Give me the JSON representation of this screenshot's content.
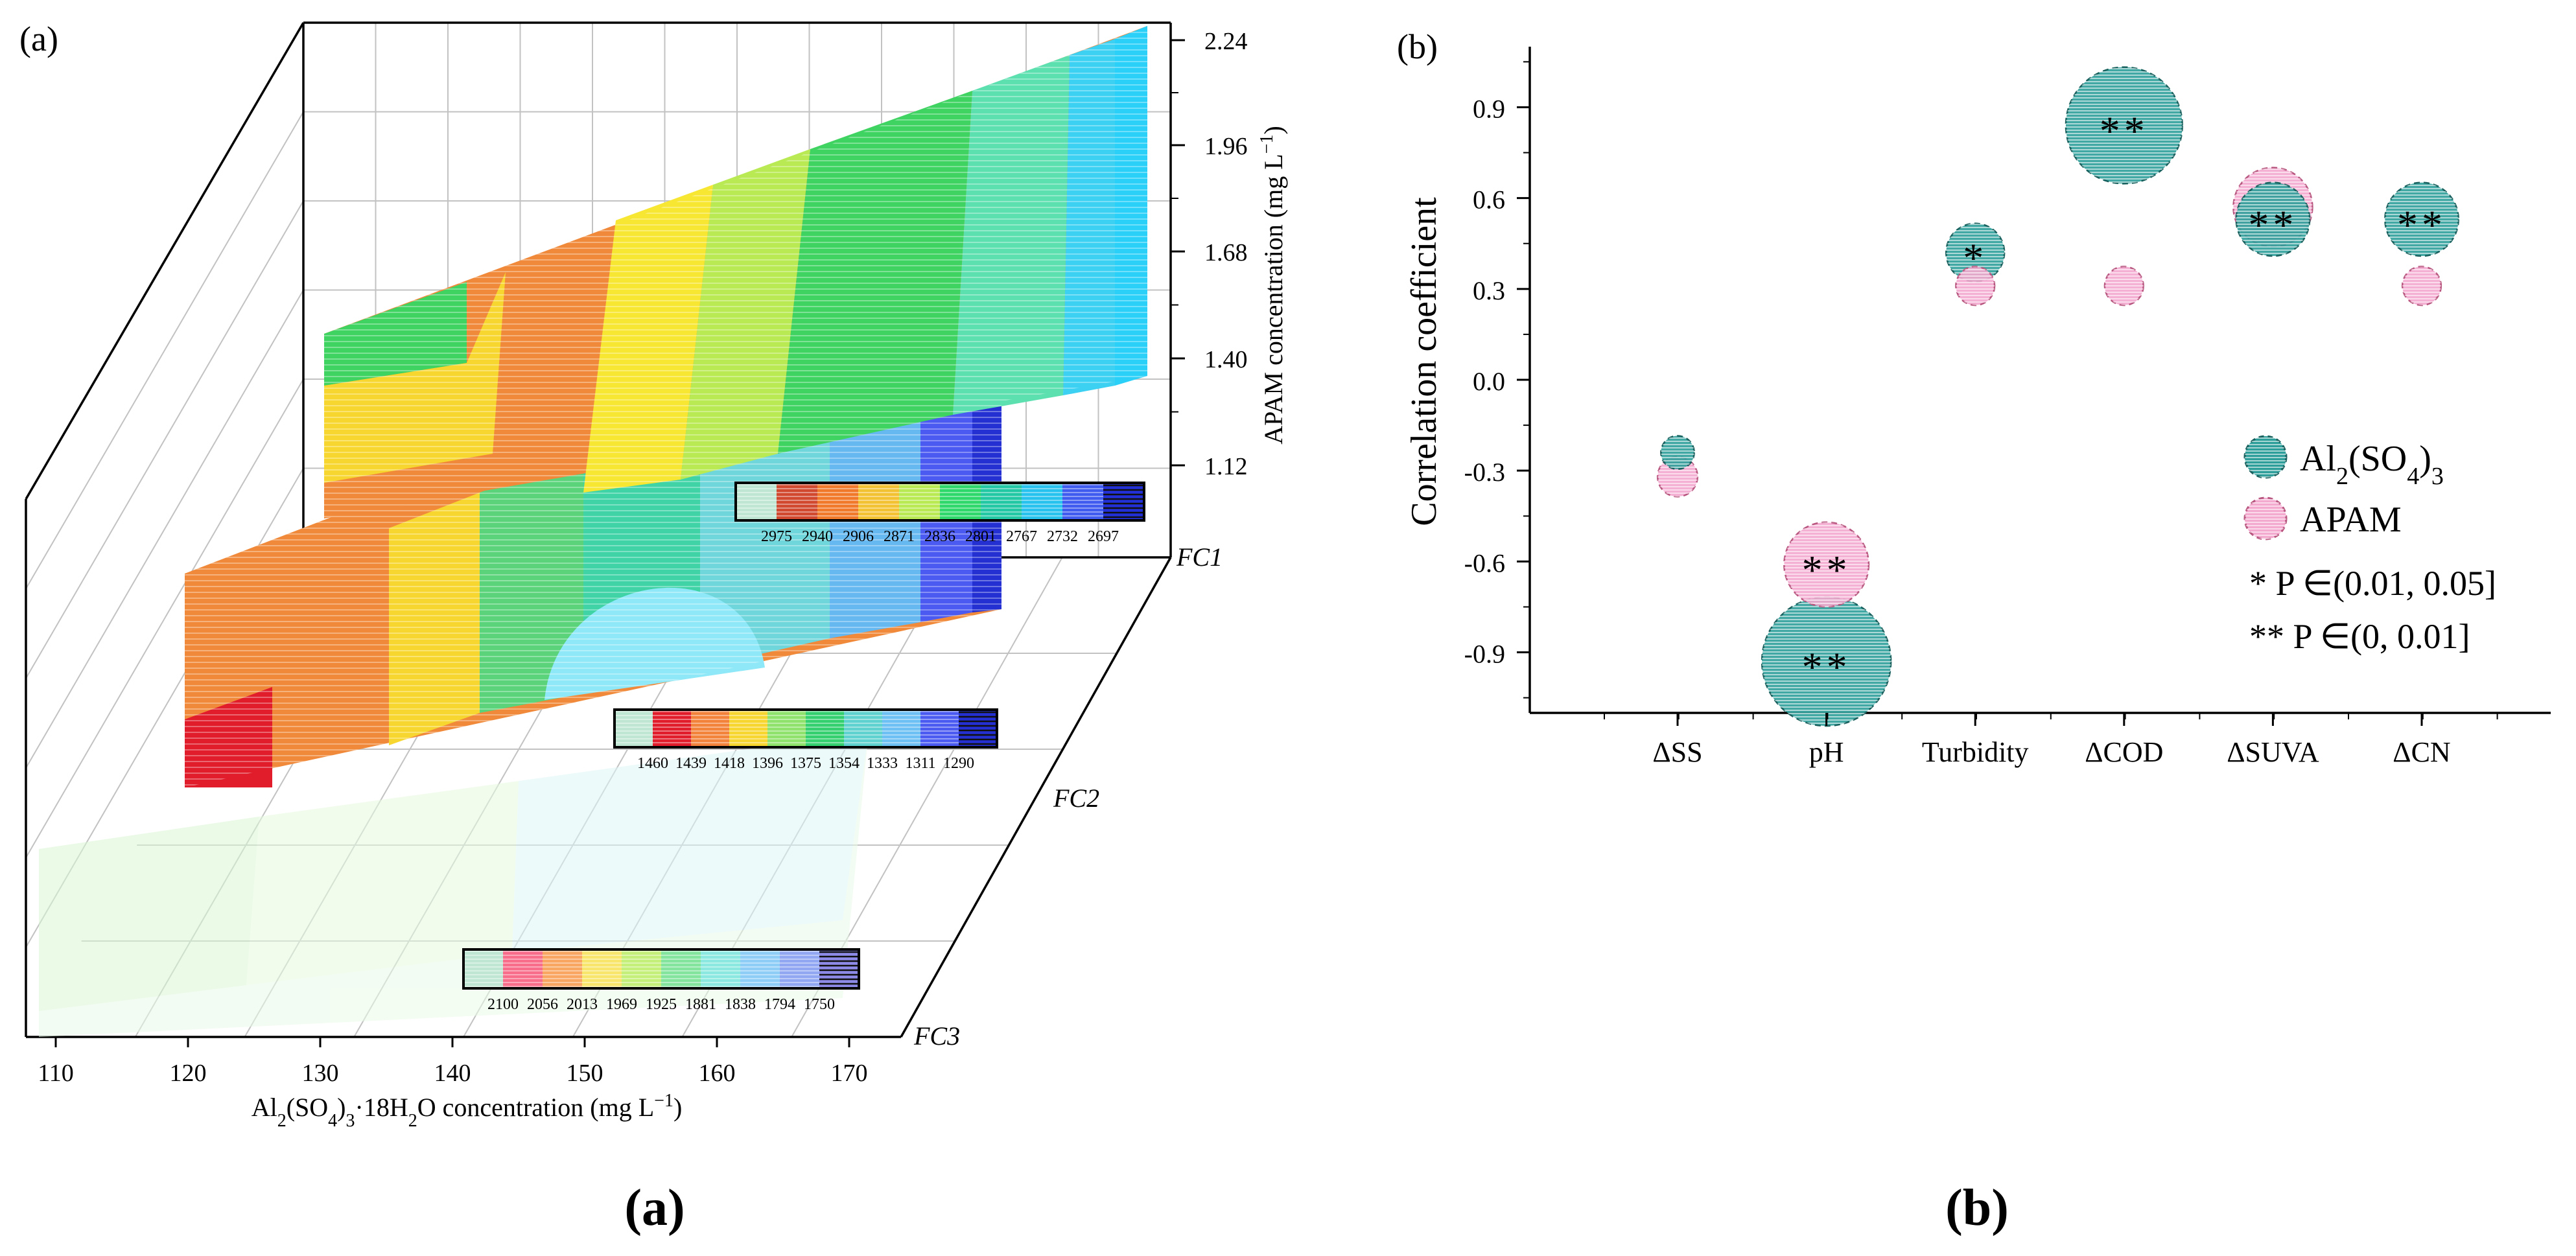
{
  "colors": {
    "al": "#2e9e9a",
    "al_edge": "#17605d",
    "apam": "#f4a9cf",
    "apam_edge": "#b8567f",
    "axis": "#000000",
    "grid": "#bfbfbf",
    "fc1_band_colors": [
      "#d14a2f",
      "#f07a2a",
      "#f3c233",
      "#b9ea53",
      "#2fd86a",
      "#22c7a4",
      "#28c2ef",
      "#3f5bf0",
      "#2230d8",
      "#151515"
    ],
    "fc2_band_colors": [
      "#e11c2b",
      "#f3823a",
      "#f7d62f",
      "#8fe36c",
      "#34d06f",
      "#5fd1cf",
      "#6cc0f3",
      "#4b5af1",
      "#2430d2",
      "#151515"
    ],
    "fc3_band_colors": [
      "#f86d8a",
      "#f8a662",
      "#f8e66c",
      "#c4f07a",
      "#83e49d",
      "#8be8e0",
      "#8ecdf6",
      "#92a7f1",
      "#8e8ae8",
      "#151515"
    ]
  },
  "panel_a": {
    "label": "(a)",
    "caption": "(a)",
    "x_axis": {
      "title_parts": [
        "Al",
        "2",
        "(SO",
        "4",
        ")",
        "3",
        "·18H",
        "2",
        "O concentration (mg L",
        "−1",
        ")"
      ],
      "ticks": [
        "110",
        "120",
        "130",
        "140",
        "150",
        "160",
        "170"
      ]
    },
    "z_axis": {
      "title_parts": [
        "APAM concentration (mg L",
        "−1",
        ")"
      ],
      "ticks": [
        "2.24",
        "1.96",
        "1.68",
        "1.40",
        "1.12"
      ]
    },
    "floor_labels": [
      "FC1",
      "FC2",
      "FC3"
    ],
    "legends": [
      {
        "name": "FC1",
        "ticks": [
          "2975",
          "2940",
          "2906",
          "2871",
          "2836",
          "2801",
          "2767",
          "2732",
          "2697"
        ]
      },
      {
        "name": "FC2",
        "ticks": [
          "1460",
          "1439",
          "1418",
          "1396",
          "1375",
          "1354",
          "1333",
          "1311",
          "1290"
        ]
      },
      {
        "name": "FC3",
        "ticks": [
          "2100",
          "2056",
          "2013",
          "1969",
          "1925",
          "1881",
          "1838",
          "1794",
          "1750"
        ]
      }
    ]
  },
  "chart_data": [
    {
      "type": "bubble",
      "panel": "(b)",
      "ylabel": "Correlation coefficient",
      "xlabel": "",
      "ylim": [
        -1.1,
        1.1
      ],
      "yticks": [
        "0.9",
        "0.6",
        "0.3",
        "0.0",
        "-0.3",
        "-0.6",
        "-0.9"
      ],
      "categories": [
        "ΔSS",
        "pH",
        "Turbidity",
        "ΔCOD",
        "ΔSUVA",
        "ΔCN"
      ],
      "legend": {
        "entries": [
          {
            "name_parts": [
              "Al",
              "2",
              "(SO",
              "4",
              ")",
              "3"
            ]
          },
          {
            "name_parts": [
              "APAM"
            ]
          }
        ],
        "notes": [
          "* P ∈(0.01, 0.05]",
          "** P ∈(0, 0.01]"
        ]
      },
      "series": [
        {
          "name": "Al2(SO4)3",
          "values": [
            -0.24,
            -0.93,
            0.42,
            0.84,
            0.53,
            0.53
          ],
          "marks": [
            "",
            "**",
            "*",
            "**",
            "**",
            "**"
          ]
        },
        {
          "name": "APAM",
          "values": [
            -0.32,
            -0.61,
            0.31,
            0.31,
            0.57,
            0.31
          ],
          "marks": [
            "",
            "**",
            "",
            "",
            "",
            ""
          ]
        }
      ]
    },
    {
      "type": "contour-3d",
      "panel": "(a)",
      "title": "",
      "xlabel": "Al2(SO4)3·18H2O concentration (mg L−1)",
      "zlabel": "APAM concentration (mg L−1)",
      "xlim": [
        110,
        170
      ],
      "zlim": [
        1.12,
        2.24
      ],
      "surfaces": [
        {
          "name": "FC1",
          "levels": [
            2975,
            2940,
            2906,
            2871,
            2836,
            2801,
            2767,
            2732,
            2697
          ]
        },
        {
          "name": "FC2",
          "levels": [
            1460,
            1439,
            1418,
            1396,
            1375,
            1354,
            1333,
            1311,
            1290
          ]
        },
        {
          "name": "FC3",
          "levels": [
            2100,
            2056,
            2013,
            1969,
            1925,
            1881,
            1838,
            1794,
            1750
          ]
        }
      ]
    }
  ],
  "panel_b": {
    "label": "(b)",
    "caption": "(b)"
  }
}
